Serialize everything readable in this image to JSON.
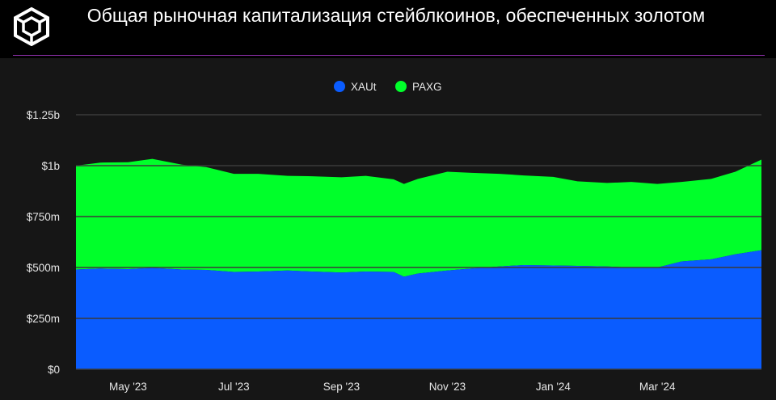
{
  "header": {
    "title": "Общая рыночная капитализация стейблкоинов, обеспеченных золотом",
    "logo_icon": "cube-logo-icon"
  },
  "chart_data": {
    "type": "area",
    "stacked": true,
    "title": "Общая рыночная капитализация стейблкоинов, обеспеченных золотом",
    "xlabel": "",
    "ylabel": "",
    "ylim": [
      0,
      1250
    ],
    "y_unit": "millions USD",
    "y_ticks": [
      {
        "value": 0,
        "label": "$0"
      },
      {
        "value": 250,
        "label": "$250m"
      },
      {
        "value": 500,
        "label": "$500m"
      },
      {
        "value": 750,
        "label": "$750m"
      },
      {
        "value": 1000,
        "label": "$1b"
      },
      {
        "value": 1250,
        "label": "$1.25b"
      }
    ],
    "xlim": [
      "2023-04-01",
      "2024-04-30"
    ],
    "x_ticks": [
      {
        "date": "2023-05-01",
        "label": "May '23"
      },
      {
        "date": "2023-07-01",
        "label": "Jul '23"
      },
      {
        "date": "2023-09-01",
        "label": "Sep '23"
      },
      {
        "date": "2023-11-01",
        "label": "Nov '23"
      },
      {
        "date": "2024-01-01",
        "label": "Jan '24"
      },
      {
        "date": "2024-03-01",
        "label": "Mar '24"
      }
    ],
    "grid": true,
    "legend_position": "top-center",
    "dates": [
      "2023-04-01",
      "2023-04-15",
      "2023-05-01",
      "2023-05-15",
      "2023-06-01",
      "2023-06-15",
      "2023-07-01",
      "2023-07-15",
      "2023-08-01",
      "2023-08-15",
      "2023-09-01",
      "2023-09-15",
      "2023-10-01",
      "2023-10-07",
      "2023-10-15",
      "2023-11-01",
      "2023-11-15",
      "2023-12-01",
      "2023-12-15",
      "2024-01-01",
      "2024-01-15",
      "2024-02-01",
      "2024-02-15",
      "2024-03-01",
      "2024-03-15",
      "2024-04-01",
      "2024-04-15",
      "2024-04-30"
    ],
    "series": [
      {
        "name": "XAUt",
        "color": "#0a5cff",
        "values": [
          490,
          495,
          492,
          498,
          490,
          488,
          478,
          480,
          485,
          480,
          475,
          480,
          478,
          455,
          470,
          485,
          495,
          505,
          512,
          510,
          508,
          505,
          500,
          500,
          530,
          540,
          565,
          585
        ]
      },
      {
        "name": "PAXG",
        "color": "#00ff2a",
        "values": [
          510,
          520,
          525,
          535,
          515,
          505,
          482,
          480,
          465,
          468,
          468,
          470,
          455,
          455,
          465,
          485,
          470,
          455,
          440,
          435,
          415,
          410,
          420,
          410,
          390,
          395,
          405,
          445
        ]
      }
    ]
  }
}
